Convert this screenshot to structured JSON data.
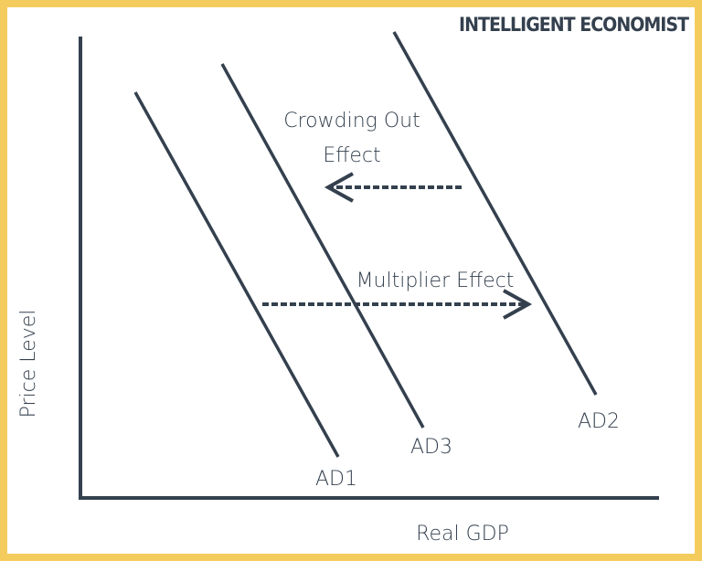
{
  "logo": "INTELLIGENT ECONOMIST",
  "axes": {
    "x_label": "Real GDP",
    "y_label": "Price Level"
  },
  "curves": [
    {
      "label": "AD1"
    },
    {
      "label": "AD3"
    },
    {
      "label": "AD2"
    }
  ],
  "annotations": {
    "crowding_line1": "Crowding Out",
    "crowding_line2": "Effect",
    "multiplier": "Multiplier Effect"
  },
  "colors": {
    "ink": "#34404e",
    "border": "#f4cc5e"
  }
}
